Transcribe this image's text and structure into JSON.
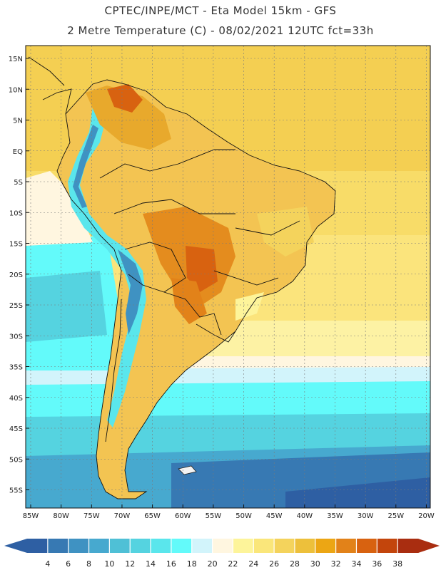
{
  "header": {
    "line1": "CPTEC/INPE/MCT -  Eta Model 15km - GFS",
    "line2": "2 Metre Temperature (C) - 08/02/2021 12UTC fct=33h"
  },
  "map": {
    "lat_labels": [
      "15N",
      "10N",
      "5N",
      "EQ",
      "5S",
      "10S",
      "15S",
      "20S",
      "25S",
      "30S",
      "35S",
      "40S",
      "45S",
      "50S",
      "55S"
    ],
    "lon_labels": [
      "85W",
      "80W",
      "75W",
      "70W",
      "65W",
      "60W",
      "55W",
      "50W",
      "45W",
      "40W",
      "35W",
      "30W",
      "25W",
      "20W"
    ]
  },
  "colorbar": {
    "labels": [
      "4",
      "6",
      "8",
      "10",
      "12",
      "14",
      "16",
      "18",
      "20",
      "22",
      "24",
      "26",
      "28",
      "30",
      "32",
      "34",
      "36",
      "38"
    ],
    "colors": [
      "#2e5fa3",
      "#3779b3",
      "#3f92c2",
      "#47a9cf",
      "#4fc0d6",
      "#55d3e0",
      "#5ae6ec",
      "#63fafa",
      "#d2f4fb",
      "#fff6e0",
      "#fdf49a",
      "#fae67a",
      "#f4d35c",
      "#edc03b",
      "#eca614",
      "#e28219",
      "#d86210",
      "#c3450c",
      "#a92d10"
    ],
    "left_arrow_color": "#2e5fa3",
    "right_arrow_color": "#a92d10"
  }
}
